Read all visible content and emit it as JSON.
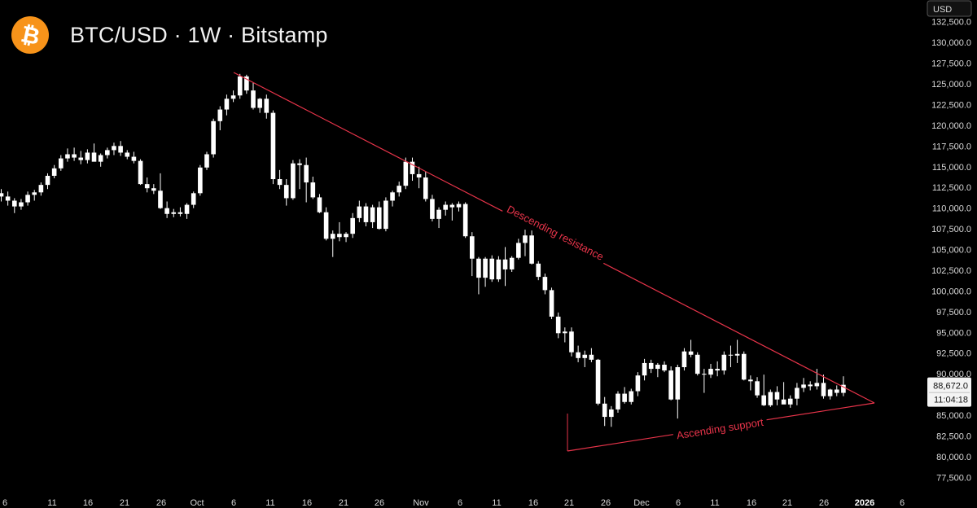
{
  "header": {
    "title": "BTC/USD · 1W · Bitstamp",
    "logo_icon": "bitcoin-icon",
    "logo_color": "#f7931a"
  },
  "axis": {
    "currency": "USD",
    "y_ticks": [
      "77,500.0",
      "80,000.0",
      "82,500.0",
      "85,000.0",
      "87,500.0",
      "90,000.0",
      "92,500.0",
      "95,000.0",
      "97,500.0",
      "100,000.0",
      "102,500.0",
      "105,000.0",
      "107,500.0",
      "110,000.0",
      "112,500.0",
      "115,000.0",
      "117,500.0",
      "120,000.0",
      "122,500.0",
      "125,000.0",
      "127,500.0",
      "130,000.0",
      "132,500.0"
    ],
    "x_ticks": [
      "6",
      "11",
      "16",
      "21",
      "26",
      "Oct",
      "6",
      "11",
      "16",
      "21",
      "26",
      "Nov",
      "6",
      "11",
      "16",
      "21",
      "26",
      "Dec",
      "6",
      "11",
      "16",
      "21",
      "26",
      "2026",
      "6"
    ],
    "bold_tick": "2026"
  },
  "price_badge": {
    "price": "88,672.0",
    "countdown": "11:04:18"
  },
  "annotations": {
    "resistance_label": "Descending resistance",
    "support_label": "Ascending support"
  },
  "colors": {
    "candle": "#ffffff",
    "trendline": "#e8344a",
    "background": "#000000"
  },
  "chart_data": {
    "type": "candlestick",
    "title": "BTC/USD · 1W · Bitstamp",
    "ylabel": "USD",
    "ylim": [
      76000,
      133500
    ],
    "x_tick_labels": [
      "6",
      "11",
      "16",
      "21",
      "26",
      "Oct",
      "6",
      "11",
      "16",
      "21",
      "26",
      "Nov",
      "6",
      "11",
      "16",
      "21",
      "26",
      "Dec",
      "6",
      "11",
      "16",
      "21",
      "26",
      "2026",
      "6"
    ],
    "candles": [
      [
        111800,
        112300,
        110800,
        111400
      ],
      [
        111400,
        112000,
        110300,
        110900
      ],
      [
        110900,
        111200,
        109400,
        110200
      ],
      [
        110200,
        111100,
        109800,
        110700
      ],
      [
        110700,
        112000,
        110300,
        111600
      ],
      [
        111600,
        112200,
        110900,
        111900
      ],
      [
        111900,
        113100,
        111500,
        112800
      ],
      [
        112800,
        114200,
        112300,
        113900
      ],
      [
        113900,
        115200,
        113600,
        114800
      ],
      [
        114800,
        116400,
        114500,
        116000
      ],
      [
        116000,
        117200,
        115600,
        116500
      ],
      [
        116500,
        117300,
        115700,
        116100
      ],
      [
        116100,
        116900,
        115300,
        115800
      ],
      [
        115800,
        117100,
        115400,
        116700
      ],
      [
        116700,
        117800,
        115800,
        115600
      ],
      [
        115600,
        116600,
        115000,
        116400
      ],
      [
        116400,
        117300,
        116000,
        117000
      ],
      [
        117000,
        117900,
        116400,
        117500
      ],
      [
        117500,
        118100,
        116300,
        116700
      ],
      [
        116700,
        117000,
        115900,
        116200
      ],
      [
        116200,
        116800,
        115400,
        115700
      ],
      [
        115700,
        115900,
        112800,
        112900
      ],
      [
        112900,
        113700,
        111900,
        112400
      ],
      [
        112400,
        112900,
        111700,
        112100
      ],
      [
        112100,
        114200,
        109900,
        110000
      ],
      [
        110000,
        110800,
        108800,
        109300
      ],
      [
        109300,
        109900,
        108900,
        109500
      ],
      [
        109500,
        110100,
        109000,
        109300
      ],
      [
        109300,
        110600,
        108700,
        110400
      ],
      [
        110400,
        112000,
        110000,
        111800
      ],
      [
        111800,
        115200,
        111500,
        114900
      ],
      [
        114900,
        116800,
        114600,
        116500
      ],
      [
        116500,
        120800,
        116100,
        120500
      ],
      [
        120500,
        122300,
        119400,
        121900
      ],
      [
        121900,
        123700,
        121200,
        123200
      ],
      [
        123200,
        124200,
        122800,
        123600
      ],
      [
        123600,
        126200,
        123200,
        125900
      ],
      [
        125900,
        126100,
        123800,
        124200
      ],
      [
        124200,
        125200,
        121900,
        122100
      ],
      [
        122100,
        123300,
        121500,
        123200
      ],
      [
        123200,
        123700,
        120800,
        121500
      ],
      [
        121500,
        121800,
        112900,
        113500
      ],
      [
        113500,
        114600,
        112300,
        112800
      ],
      [
        112800,
        113500,
        110300,
        111200
      ],
      [
        111200,
        115800,
        111000,
        115400
      ],
      [
        115400,
        115900,
        112300,
        115200
      ],
      [
        115200,
        116100,
        110700,
        113100
      ],
      [
        113100,
        113800,
        111100,
        111300
      ],
      [
        111300,
        111700,
        109400,
        109500
      ],
      [
        109500,
        110100,
        106100,
        106300
      ],
      [
        106300,
        107300,
        104100,
        106900
      ],
      [
        106900,
        108300,
        106000,
        106500
      ],
      [
        106500,
        107100,
        105900,
        106900
      ],
      [
        106900,
        109400,
        106400,
        108800
      ],
      [
        108800,
        110900,
        108300,
        110200
      ],
      [
        110200,
        110600,
        107800,
        108300
      ],
      [
        108300,
        110400,
        107600,
        110100
      ],
      [
        110100,
        110800,
        107400,
        107500
      ],
      [
        107500,
        111300,
        107200,
        110900
      ],
      [
        110900,
        112100,
        110200,
        111900
      ],
      [
        111900,
        113200,
        111400,
        112700
      ],
      [
        112700,
        116100,
        112300,
        115600
      ],
      [
        115600,
        116100,
        113300,
        114100
      ],
      [
        114100,
        115000,
        112400,
        113700
      ],
      [
        113700,
        114400,
        110800,
        111100
      ],
      [
        111100,
        111600,
        108400,
        108700
      ],
      [
        108700,
        110100,
        107600,
        109800
      ],
      [
        109800,
        110800,
        109100,
        110400
      ],
      [
        110400,
        110600,
        108500,
        110100
      ],
      [
        110100,
        110800,
        109600,
        110500
      ],
      [
        110500,
        110700,
        106400,
        106600
      ],
      [
        106600,
        107100,
        101800,
        103900
      ],
      [
        103900,
        104100,
        99600,
        101600
      ],
      [
        101600,
        104100,
        100500,
        103900
      ],
      [
        103900,
        104300,
        101100,
        101400
      ],
      [
        101400,
        104200,
        101100,
        103800
      ],
      [
        103800,
        105300,
        100600,
        102600
      ],
      [
        102600,
        104200,
        102300,
        104000
      ],
      [
        104000,
        106300,
        103800,
        105800
      ],
      [
        105800,
        107400,
        104200,
        106700
      ],
      [
        106700,
        107300,
        103200,
        103300
      ],
      [
        103300,
        103600,
        101300,
        101700
      ],
      [
        101700,
        102100,
        99600,
        100100
      ],
      [
        100100,
        100400,
        96600,
        96900
      ],
      [
        96900,
        97400,
        94300,
        94900
      ],
      [
        94900,
        95600,
        93800,
        95100
      ],
      [
        95100,
        95600,
        92100,
        92600
      ],
      [
        92600,
        93400,
        91400,
        91900
      ],
      [
        91900,
        92800,
        90800,
        92300
      ],
      [
        92300,
        93100,
        91400,
        91700
      ],
      [
        91700,
        91800,
        86200,
        86400
      ],
      [
        86400,
        87200,
        83700,
        84800
      ],
      [
        84800,
        86100,
        83600,
        85700
      ],
      [
        85700,
        87900,
        85300,
        87600
      ],
      [
        87600,
        88400,
        86400,
        86600
      ],
      [
        86600,
        88200,
        86300,
        87900
      ],
      [
        87900,
        90200,
        87300,
        89800
      ],
      [
        89800,
        91800,
        89200,
        91300
      ],
      [
        91300,
        91700,
        90100,
        90600
      ],
      [
        90600,
        91300,
        89600,
        91100
      ],
      [
        91100,
        91500,
        90200,
        90400
      ],
      [
        90400,
        90900,
        86800,
        86900
      ],
      [
        86900,
        91100,
        84600,
        90800
      ],
      [
        90800,
        93100,
        90400,
        92700
      ],
      [
        92700,
        94100,
        92000,
        92300
      ],
      [
        92300,
        92600,
        89800,
        90000
      ],
      [
        90000,
        90600,
        87700,
        89900
      ],
      [
        89900,
        91200,
        89500,
        90600
      ],
      [
        90600,
        91500,
        89700,
        90400
      ],
      [
        90400,
        92700,
        89900,
        92300
      ],
      [
        92300,
        93400,
        90800,
        92200
      ],
      [
        92200,
        94100,
        91300,
        92400
      ],
      [
        92400,
        92700,
        89200,
        89300
      ],
      [
        89300,
        89800,
        88000,
        89100
      ],
      [
        89100,
        89600,
        87100,
        87400
      ],
      [
        87400,
        89900,
        86100,
        86200
      ],
      [
        86200,
        88100,
        86000,
        87800
      ],
      [
        87800,
        88500,
        86200,
        86900
      ],
      [
        86900,
        89000,
        86500,
        86300
      ],
      [
        86300,
        87400,
        85900,
        87000
      ],
      [
        87000,
        88900,
        86200,
        88300
      ],
      [
        88300,
        89500,
        87800,
        88700
      ],
      [
        88700,
        89100,
        88000,
        88500
      ],
      [
        88500,
        90600,
        88100,
        88900
      ],
      [
        88900,
        89900,
        87000,
        87300
      ],
      [
        87300,
        88200,
        86900,
        88100
      ],
      [
        88100,
        88600,
        87300,
        87700
      ],
      [
        87700,
        89700,
        87300,
        88672
      ]
    ],
    "trendlines": [
      {
        "name": "Descending resistance",
        "points": [
          [
            125900,
            "candle 36"
          ],
          [
            86300,
            "right"
          ]
        ]
      },
      {
        "name": "Ascending support",
        "points": [
          [
            80800,
            "candle 91"
          ],
          [
            86300,
            "right"
          ]
        ]
      }
    ]
  }
}
